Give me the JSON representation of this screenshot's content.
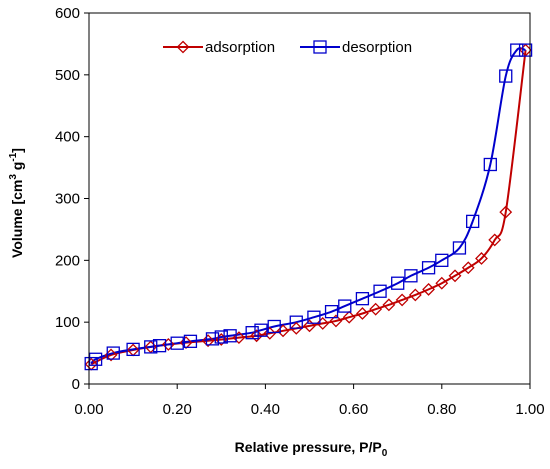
{
  "chart_data": {
    "type": "line",
    "xlabel": "Relative pressure, P/P",
    "xlabel_sub": "0",
    "ylabel_main": "Volume [cm",
    "ylabel_sup1": "3",
    "ylabel_mid": " g",
    "ylabel_sup2": "-1",
    "ylabel_end": "]",
    "xlim": [
      0,
      1
    ],
    "ylim": [
      0,
      600
    ],
    "x_ticks": [
      0,
      0.2,
      0.4,
      0.6,
      0.8,
      1.0
    ],
    "x_tick_labels": [
      "0.00",
      "0.20",
      "0.40",
      "0.60",
      "0.80",
      "1.00"
    ],
    "y_ticks": [
      0,
      100,
      200,
      300,
      400,
      500,
      600
    ],
    "y_tick_labels": [
      "0",
      "100",
      "200",
      "300",
      "400",
      "500",
      "600"
    ],
    "grid": false,
    "legend_position": "top",
    "series": [
      {
        "name": "adsorption",
        "color": "#c00000",
        "marker": "diamond",
        "x": [
          0.005,
          0.05,
          0.1,
          0.14,
          0.18,
          0.22,
          0.27,
          0.3,
          0.34,
          0.38,
          0.41,
          0.44,
          0.47,
          0.5,
          0.53,
          0.56,
          0.59,
          0.62,
          0.65,
          0.68,
          0.71,
          0.74,
          0.77,
          0.8,
          0.83,
          0.86,
          0.89,
          0.92,
          0.945,
          0.99
        ],
        "y": [
          32,
          47,
          55,
          60,
          64,
          67,
          70,
          72,
          75,
          78,
          82,
          86,
          90,
          94,
          98,
          102,
          108,
          114,
          121,
          128,
          136,
          144,
          153,
          163,
          175,
          188,
          203,
          233,
          278,
          540
        ]
      },
      {
        "name": "desorption",
        "color": "#0000cc",
        "marker": "square",
        "x": [
          0.005,
          0.015,
          0.055,
          0.1,
          0.14,
          0.16,
          0.2,
          0.23,
          0.28,
          0.3,
          0.32,
          0.37,
          0.39,
          0.42,
          0.47,
          0.51,
          0.55,
          0.58,
          0.62,
          0.66,
          0.7,
          0.73,
          0.77,
          0.8,
          0.84,
          0.87,
          0.91,
          0.945,
          0.97,
          0.99
        ],
        "y": [
          33,
          40,
          50,
          56,
          60,
          62,
          66,
          69,
          73,
          76,
          78,
          83,
          87,
          93,
          100,
          108,
          117,
          126,
          138,
          150,
          163,
          175,
          188,
          200,
          220,
          263,
          355,
          498,
          540,
          540
        ]
      }
    ]
  }
}
